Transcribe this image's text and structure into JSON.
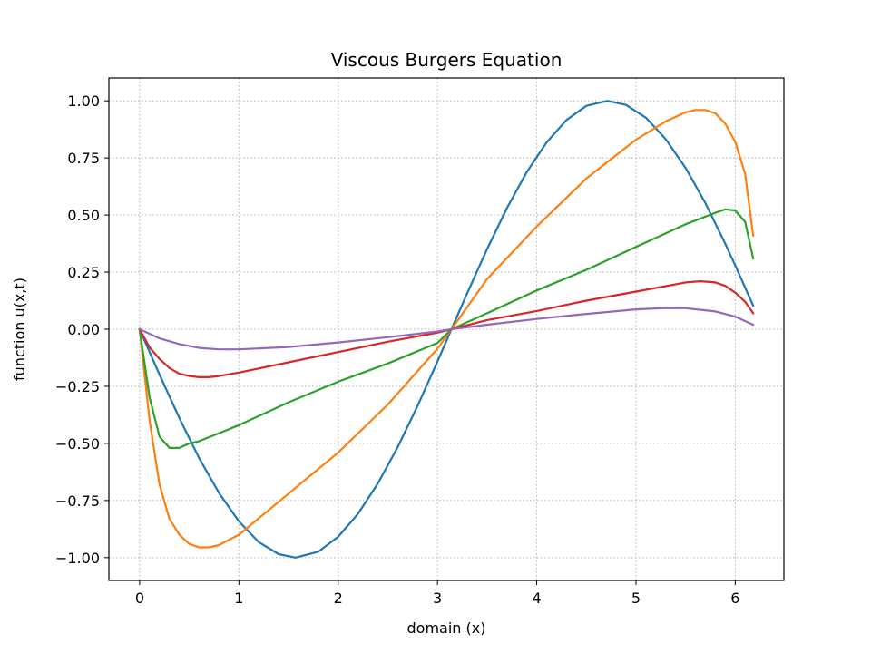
{
  "chart_data": {
    "type": "line",
    "title": "Viscous Burgers Equation",
    "xlabel": "domain (x)",
    "ylabel": "function u(x,t)",
    "xlim": [
      -0.31,
      6.49
    ],
    "ylim": [
      -1.1,
      1.1
    ],
    "xticks": [
      0,
      1,
      2,
      3,
      4,
      5,
      6
    ],
    "yticks": [
      -1.0,
      -0.75,
      -0.5,
      -0.25,
      0.0,
      0.25,
      0.5,
      0.75,
      1.0
    ],
    "xtick_labels": [
      "0",
      "1",
      "2",
      "3",
      "4",
      "5",
      "6"
    ],
    "ytick_labels": [
      "−1.00",
      "−0.75",
      "−0.50",
      "−0.25",
      "0.00",
      "0.25",
      "0.50",
      "0.75",
      "1.00"
    ],
    "grid": true,
    "legend": false,
    "series": [
      {
        "color": "#1f77b4",
        "x": [
          0,
          0.2,
          0.4,
          0.6,
          0.8,
          1.0,
          1.2,
          1.4,
          1.571,
          1.8,
          2.0,
          2.2,
          2.4,
          2.6,
          2.8,
          3.0,
          3.1416,
          3.3,
          3.5,
          3.7,
          3.9,
          4.1,
          4.3,
          4.5,
          4.712,
          4.9,
          5.1,
          5.3,
          5.5,
          5.7,
          5.9,
          6.0,
          6.1,
          6.18
        ],
        "y": [
          0,
          -0.199,
          -0.389,
          -0.565,
          -0.717,
          -0.841,
          -0.932,
          -0.985,
          -1.0,
          -0.974,
          -0.909,
          -0.808,
          -0.675,
          -0.516,
          -0.335,
          -0.141,
          0.0,
          0.158,
          0.351,
          0.53,
          0.688,
          0.818,
          0.916,
          0.978,
          1.0,
          0.982,
          0.926,
          0.832,
          0.706,
          0.551,
          0.374,
          0.279,
          0.182,
          0.103
        ]
      },
      {
        "color": "#ff7f0e",
        "x": [
          0,
          0.05,
          0.1,
          0.2,
          0.3,
          0.4,
          0.5,
          0.6,
          0.7,
          0.8,
          1.0,
          1.5,
          2.0,
          2.5,
          3.0,
          3.1416,
          3.5,
          4.0,
          4.5,
          5.0,
          5.3,
          5.5,
          5.6,
          5.7,
          5.8,
          5.9,
          6.0,
          6.1,
          6.18
        ],
        "y": [
          0,
          -0.2,
          -0.4,
          -0.68,
          -0.83,
          -0.9,
          -0.94,
          -0.955,
          -0.955,
          -0.945,
          -0.9,
          -0.72,
          -0.54,
          -0.33,
          -0.085,
          0.0,
          0.22,
          0.45,
          0.66,
          0.83,
          0.91,
          0.95,
          0.96,
          0.96,
          0.945,
          0.9,
          0.82,
          0.68,
          0.41
        ]
      },
      {
        "color": "#2ca02c",
        "x": [
          0,
          0.1,
          0.2,
          0.3,
          0.4,
          0.5,
          0.6,
          1.0,
          1.5,
          2.0,
          2.5,
          3.0,
          3.1416,
          3.5,
          4.0,
          4.5,
          5.0,
          5.5,
          5.8,
          5.9,
          6.0,
          6.1,
          6.18
        ],
        "y": [
          0,
          -0.3,
          -0.47,
          -0.52,
          -0.52,
          -0.5,
          -0.49,
          -0.42,
          -0.32,
          -0.23,
          -0.15,
          -0.06,
          0.0,
          0.07,
          0.17,
          0.26,
          0.36,
          0.46,
          0.51,
          0.525,
          0.52,
          0.47,
          0.31
        ]
      },
      {
        "color": "#d62728",
        "x": [
          0,
          0.1,
          0.2,
          0.3,
          0.4,
          0.5,
          0.6,
          0.7,
          0.8,
          1.0,
          1.5,
          2.0,
          2.5,
          3.0,
          3.1416,
          3.5,
          4.0,
          4.5,
          5.0,
          5.5,
          5.65,
          5.8,
          5.9,
          6.0,
          6.1,
          6.18
        ],
        "y": [
          0,
          -0.08,
          -0.13,
          -0.17,
          -0.195,
          -0.205,
          -0.21,
          -0.21,
          -0.205,
          -0.19,
          -0.145,
          -0.1,
          -0.055,
          -0.015,
          0.0,
          0.04,
          0.08,
          0.125,
          0.165,
          0.205,
          0.21,
          0.205,
          0.19,
          0.16,
          0.12,
          0.07
        ]
      },
      {
        "color": "#9467bd",
        "x": [
          0,
          0.2,
          0.4,
          0.6,
          0.8,
          1.0,
          1.5,
          2.0,
          2.5,
          3.0,
          3.1416,
          3.5,
          4.0,
          4.5,
          5.0,
          5.3,
          5.5,
          5.8,
          6.0,
          6.18
        ],
        "y": [
          0,
          -0.04,
          -0.065,
          -0.082,
          -0.088,
          -0.088,
          -0.078,
          -0.058,
          -0.035,
          -0.01,
          0.0,
          0.02,
          0.045,
          0.067,
          0.087,
          0.093,
          0.092,
          0.078,
          0.055,
          0.02
        ]
      }
    ]
  }
}
